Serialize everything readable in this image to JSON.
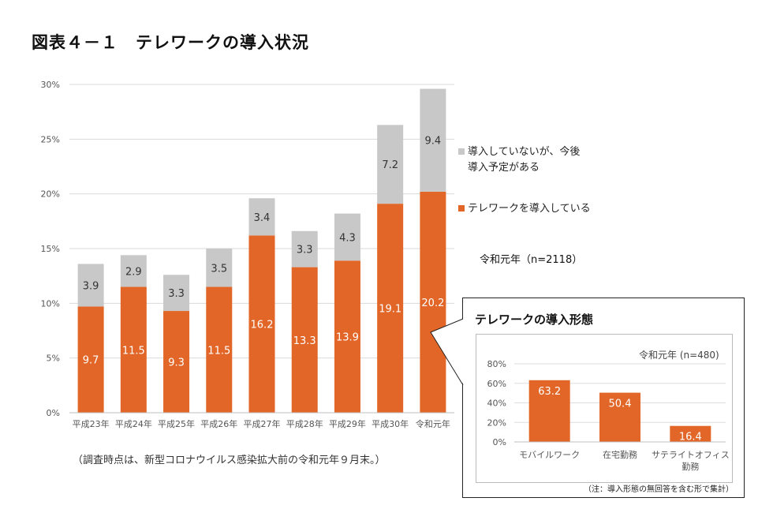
{
  "title": "図表４－１　テレワークの導入状況",
  "note": "（調査時点は、新型コロナウイルス感染拡大前の令和元年９月末。）",
  "colors": {
    "adopted": "#e26627",
    "planned": "#c8c8c8"
  },
  "chart_data": [
    {
      "type": "bar",
      "stacked": true,
      "title": "",
      "categories": [
        "平成23年",
        "平成24年",
        "平成25年",
        "平成26年",
        "平成27年",
        "平成28年",
        "平成29年",
        "平成30年",
        "令和元年"
      ],
      "series": [
        {
          "name": "テレワークを導入している",
          "values": [
            9.7,
            11.5,
            9.3,
            11.5,
            16.2,
            13.3,
            13.9,
            19.1,
            20.2
          ]
        },
        {
          "name": "導入していないが、今後\n導入予定がある",
          "values": [
            3.9,
            2.9,
            3.3,
            3.5,
            3.4,
            3.3,
            4.3,
            7.2,
            9.4
          ]
        }
      ],
      "data_labels_adopted": [
        "9.7",
        "11.5",
        "9.3",
        "11.5",
        "16.2",
        "13.3",
        "13.9",
        "19.1",
        "20.2"
      ],
      "data_labels_planned": [
        "3.9",
        "2.9",
        "3.3",
        "3.5",
        "3.4",
        "3.3",
        "4.3",
        "7.2",
        "9.4"
      ],
      "yticks": [
        "0%",
        "5%",
        "10%",
        "15%",
        "20%",
        "25%",
        "30%"
      ],
      "ylim": [
        0,
        30
      ],
      "legend": [
        {
          "lines": [
            "導入していないが、今後",
            "導入予定がある"
          ],
          "key": "planned"
        },
        {
          "lines": [
            "テレワークを導入している"
          ],
          "key": "adopted"
        }
      ],
      "legend_note": "令和元年（n=2118）"
    },
    {
      "type": "bar",
      "title": "テレワークの導入形態",
      "subtitle": "令和元年 (n=480)",
      "categories": [
        "モバイルワーク",
        "在宅勤務",
        "サテライトオフィス|勤務"
      ],
      "values": [
        63.2,
        50.4,
        16.4
      ],
      "data_labels": [
        "63.2",
        "50.4",
        "16.4"
      ],
      "yticks": [
        "0%",
        "20%",
        "40%",
        "60%",
        "80%"
      ],
      "ylim": [
        0,
        80
      ],
      "footnote": "（注：導入形態の無回答を含む形で集計）"
    }
  ]
}
